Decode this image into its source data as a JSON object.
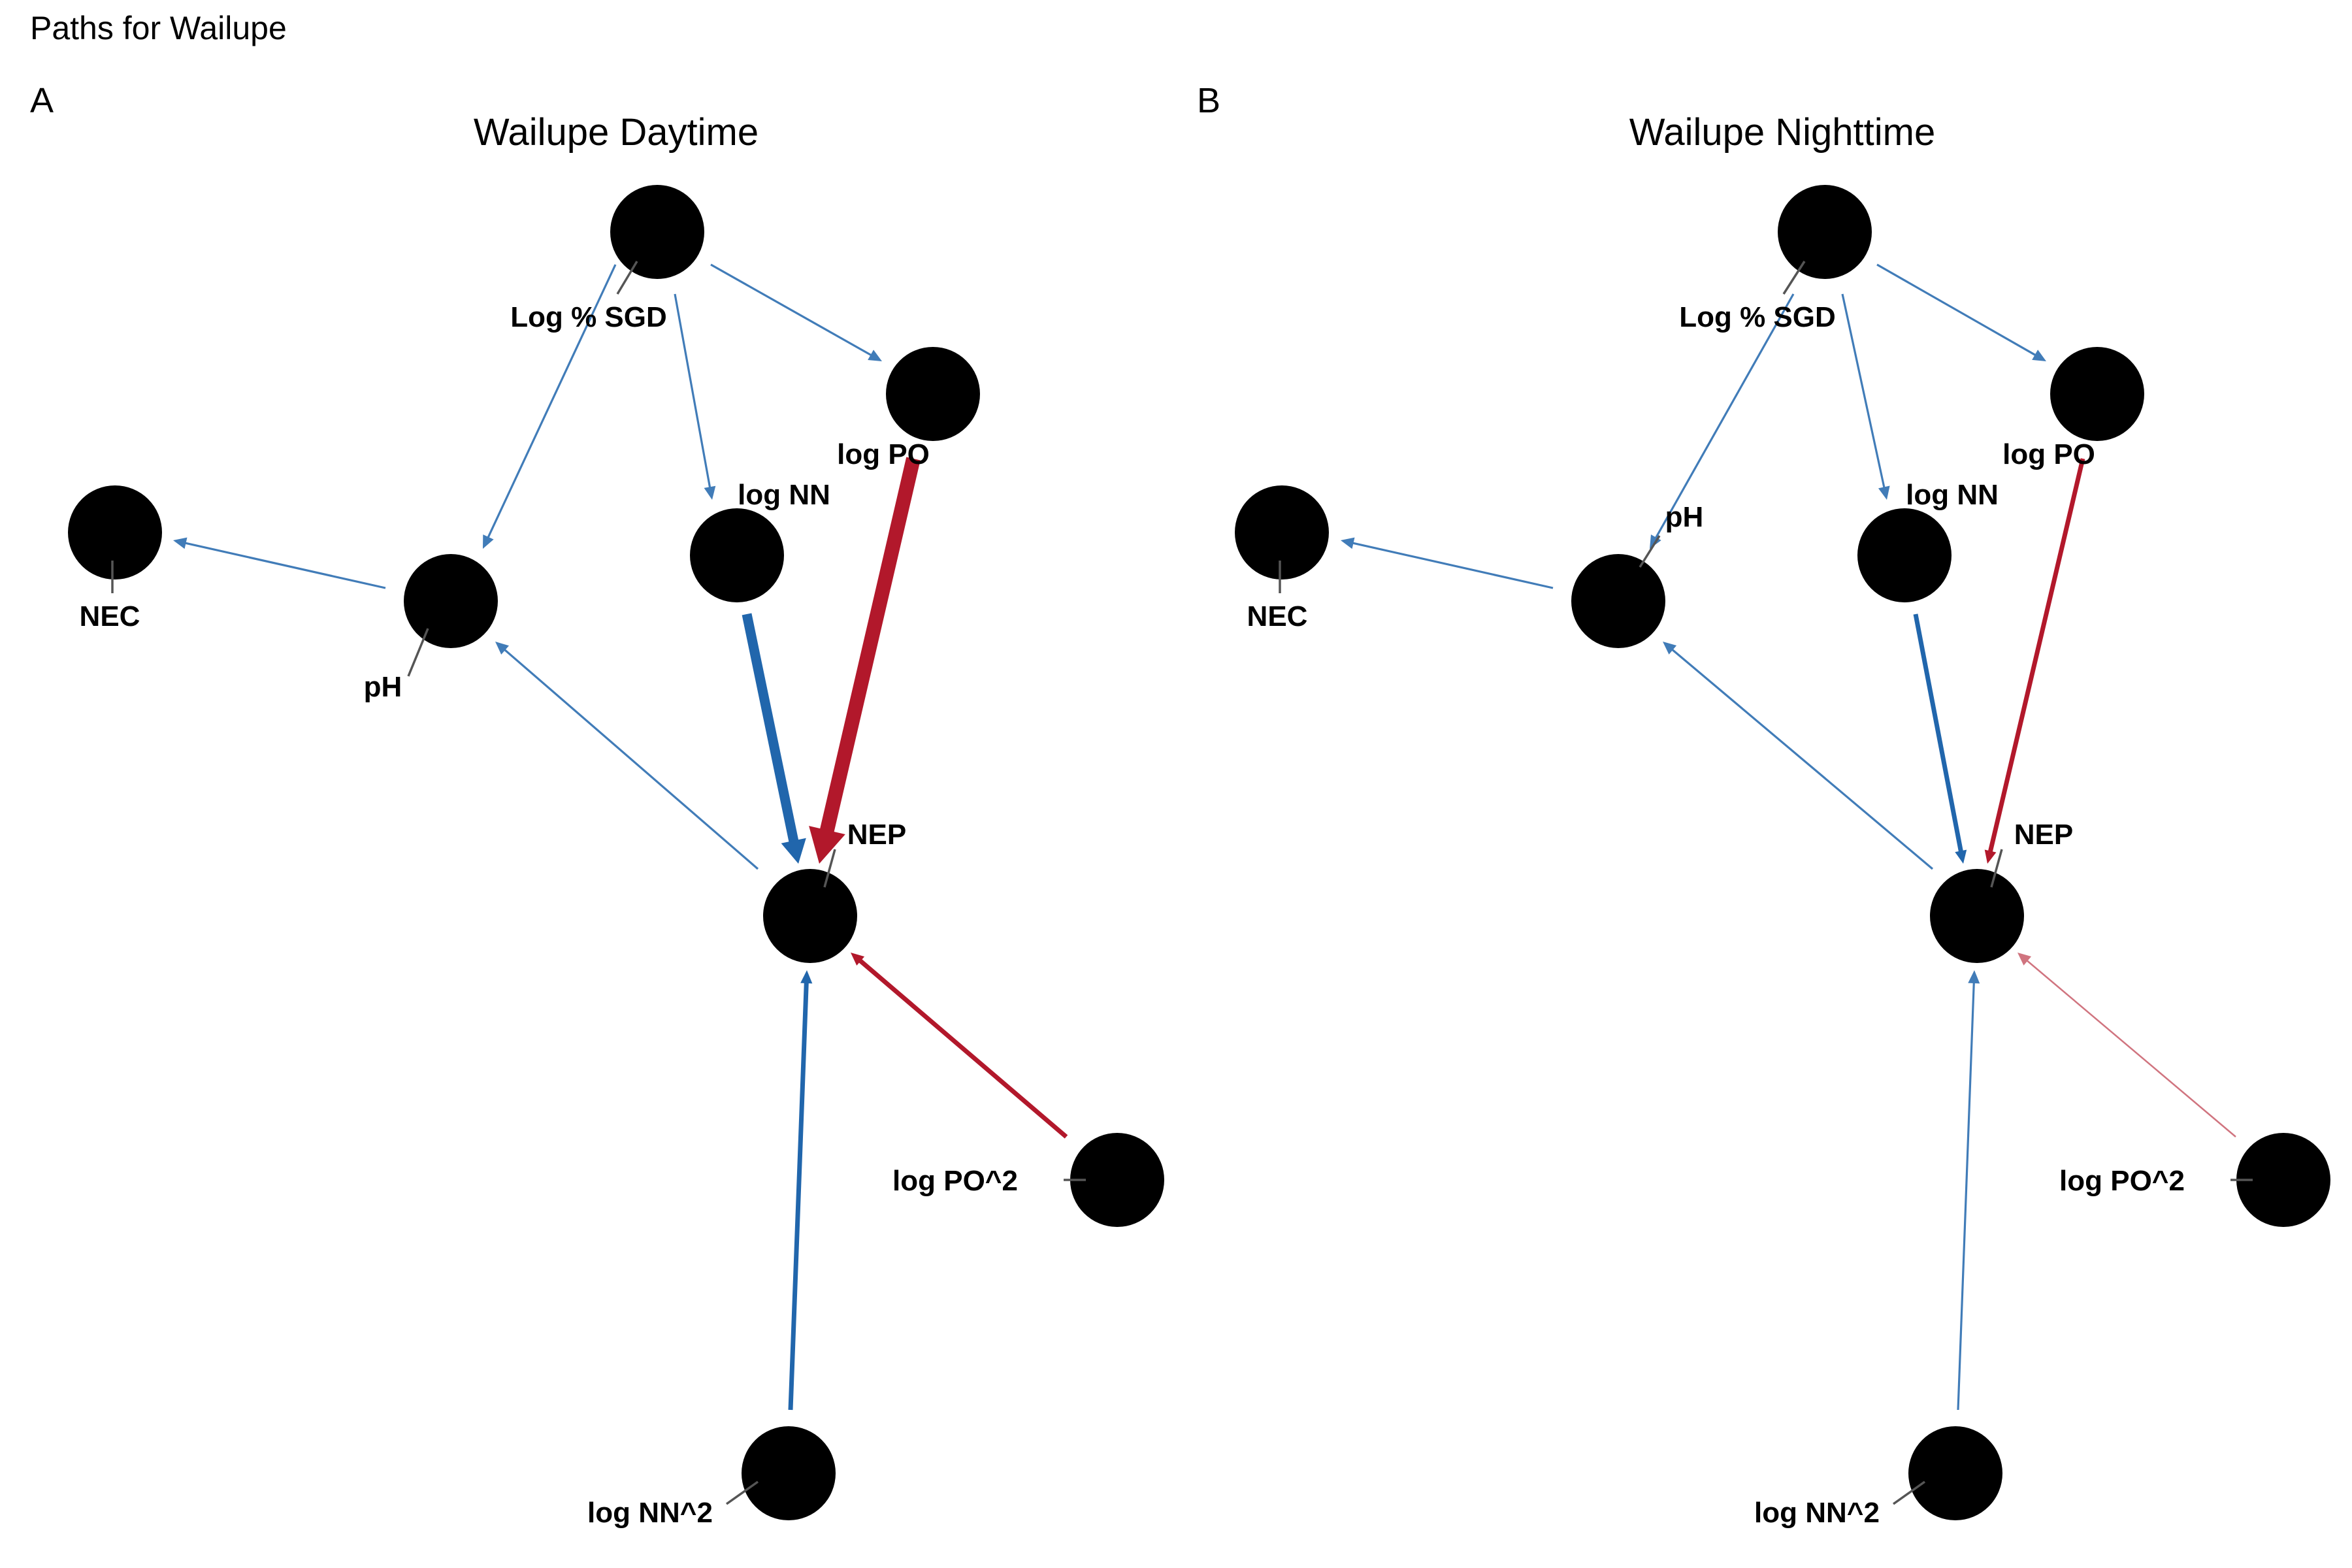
{
  "figure_title": "Paths for Wailupe",
  "colors": {
    "positive": "#2166ac",
    "negative": "#b2182b",
    "node": "#000000",
    "leader": "#555555"
  },
  "panels": [
    {
      "tag": "A",
      "title": "Wailupe Daytime",
      "nodes": [
        {
          "id": "sgd",
          "label": "Log % SGD"
        },
        {
          "id": "po",
          "label": "log PO"
        },
        {
          "id": "nn",
          "label": "log NN"
        },
        {
          "id": "nec",
          "label": "NEC"
        },
        {
          "id": "ph",
          "label": "pH"
        },
        {
          "id": "nep",
          "label": "NEP"
        },
        {
          "id": "po2",
          "label": "log PO^2"
        },
        {
          "id": "nn2",
          "label": "log NN^2"
        }
      ],
      "edges": [
        {
          "from": "sgd",
          "to": "po",
          "sign": "positive",
          "strength": "weak"
        },
        {
          "from": "sgd",
          "to": "nn",
          "sign": "positive",
          "strength": "weak"
        },
        {
          "from": "sgd",
          "to": "ph",
          "sign": "positive",
          "strength": "weak"
        },
        {
          "from": "ph",
          "to": "nec",
          "sign": "positive",
          "strength": "weak"
        },
        {
          "from": "nep",
          "to": "ph",
          "sign": "positive",
          "strength": "weak"
        },
        {
          "from": "nn",
          "to": "nep",
          "sign": "positive",
          "strength": "strong"
        },
        {
          "from": "po",
          "to": "nep",
          "sign": "negative",
          "strength": "strongest"
        },
        {
          "from": "po2",
          "to": "nep",
          "sign": "negative",
          "strength": "medium"
        },
        {
          "from": "nn2",
          "to": "nep",
          "sign": "positive",
          "strength": "medium"
        }
      ]
    },
    {
      "tag": "B",
      "title": "Wailupe Nighttime",
      "nodes": [
        {
          "id": "sgd",
          "label": "Log % SGD"
        },
        {
          "id": "po",
          "label": "log PO"
        },
        {
          "id": "nn",
          "label": "log NN"
        },
        {
          "id": "nec",
          "label": "NEC"
        },
        {
          "id": "ph",
          "label": "pH"
        },
        {
          "id": "nep",
          "label": "NEP"
        },
        {
          "id": "po2",
          "label": "log PO^2"
        },
        {
          "id": "nn2",
          "label": "log NN^2"
        }
      ],
      "edges": [
        {
          "from": "sgd",
          "to": "po",
          "sign": "positive",
          "strength": "weak"
        },
        {
          "from": "sgd",
          "to": "nn",
          "sign": "positive",
          "strength": "weak"
        },
        {
          "from": "sgd",
          "to": "ph",
          "sign": "positive",
          "strength": "weak"
        },
        {
          "from": "ph",
          "to": "nec",
          "sign": "positive",
          "strength": "weak"
        },
        {
          "from": "nep",
          "to": "ph",
          "sign": "positive",
          "strength": "weak"
        },
        {
          "from": "nn",
          "to": "nep",
          "sign": "positive",
          "strength": "medium"
        },
        {
          "from": "po",
          "to": "nep",
          "sign": "negative",
          "strength": "medium"
        },
        {
          "from": "po2",
          "to": "nep",
          "sign": "negative",
          "strength": "faint"
        },
        {
          "from": "nn2",
          "to": "nep",
          "sign": "positive",
          "strength": "weak"
        }
      ]
    }
  ]
}
